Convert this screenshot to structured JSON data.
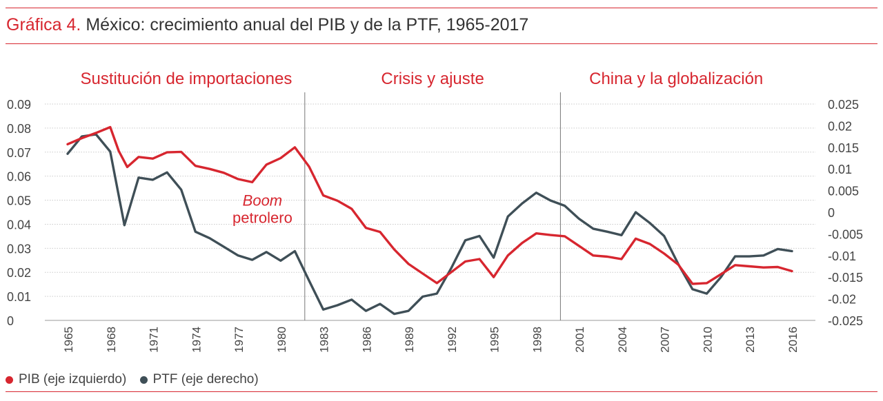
{
  "title": {
    "label": "Gráfica 4.",
    "text": "México: crecimiento anual del PIB y de la PTF, 1965-2017"
  },
  "colors": {
    "accent": "#d7262f",
    "pib": "#d7262f",
    "ptf": "#3f4f57",
    "grid": "#c9c9c9",
    "divider": "#777777"
  },
  "legend": [
    {
      "label": "PIB (eje izquierdo)",
      "color": "#d7262f"
    },
    {
      "label": "PTF (eje derecho)",
      "color": "#3f4f57"
    }
  ],
  "chart_data": {
    "type": "line",
    "grid": true,
    "legend_position": "bottom-left",
    "x_range": [
      1965,
      2016
    ],
    "x_ticks": [
      1965,
      1968,
      1971,
      1974,
      1977,
      1980,
      1983,
      1986,
      1989,
      1992,
      1995,
      1998,
      2001,
      2004,
      2007,
      2010,
      2013,
      2016
    ],
    "y_left": {
      "min": 0,
      "max": 0.09,
      "ticks": [
        "0",
        "0.01",
        "0.02",
        "0.03",
        "0.04",
        "0.05",
        "0.06",
        "0.07",
        "0.08",
        "0.09"
      ]
    },
    "y_right": {
      "min": -0.025,
      "max": 0.025,
      "ticks": [
        "-0.025",
        "-0.02",
        "-0.015",
        "-0.01",
        "-0.005",
        "0",
        "0.005",
        "0.01",
        "0.015",
        "0.02",
        "0.025"
      ]
    },
    "periods": [
      {
        "label": "Sustitución de importaciones",
        "start": 1965,
        "end": 1981.7
      },
      {
        "label": "Crisis y ajuste",
        "start": 1981.7,
        "end": 1999.7
      },
      {
        "label": "China y la globalización",
        "start": 1999.7,
        "end": 2016
      }
    ],
    "dividers": [
      1981.7,
      1999.7
    ],
    "annotation": {
      "line1": "Boom",
      "line2": "petrolero",
      "x": 1981,
      "y": 0.042
    },
    "series": [
      {
        "name": "PIB (eje izquierdo)",
        "axis": "left",
        "x": [
          1965,
          1966,
          1967,
          1968,
          1968.6,
          1969.2,
          1970,
          1971,
          1972,
          1973,
          1974,
          1975,
          1976,
          1977,
          1978,
          1979,
          1980,
          1981,
          1982,
          1983,
          1984,
          1985,
          1986,
          1987,
          1988,
          1989,
          1990,
          1991,
          1992,
          1993,
          1994,
          1995,
          1996,
          1997,
          1998,
          1999,
          2000,
          2001,
          2002,
          2003,
          2004,
          2005,
          2006,
          2007,
          2008,
          2009,
          2010,
          2011,
          2012,
          2013,
          2014,
          2015,
          2016
        ],
        "values": [
          0.0733,
          0.0758,
          0.078,
          0.0804,
          0.0705,
          0.0638,
          0.068,
          0.0673,
          0.0699,
          0.0701,
          0.0643,
          0.063,
          0.0614,
          0.0588,
          0.0575,
          0.0648,
          0.0675,
          0.072,
          0.064,
          0.052,
          0.0498,
          0.0464,
          0.0385,
          0.0368,
          0.0295,
          0.0235,
          0.0195,
          0.0155,
          0.02,
          0.0245,
          0.0255,
          0.018,
          0.027,
          0.0322,
          0.0362,
          0.0355,
          0.035,
          0.031,
          0.027,
          0.0265,
          0.0255,
          0.034,
          0.0318,
          0.0278,
          0.0232,
          0.0152,
          0.0155,
          0.0192,
          0.023,
          0.0225,
          0.022,
          0.0222,
          0.0205
        ]
      },
      {
        "name": "PTF (eje derecho)",
        "axis": "right",
        "x": [
          1965,
          1966,
          1967,
          1968,
          1969,
          1970,
          1971,
          1972,
          1973,
          1974,
          1975,
          1976,
          1977,
          1978,
          1979,
          1980,
          1981,
          1982,
          1983,
          1984,
          1985,
          1986,
          1987,
          1988,
          1989,
          1990,
          1991,
          1992,
          1993,
          1994,
          1995,
          1996,
          1997,
          1998,
          1999,
          2000,
          2001,
          2002,
          2003,
          2004,
          2005,
          2006,
          2007,
          2008,
          2009,
          2010,
          2011,
          2012,
          2013,
          2014,
          2015,
          2016
        ],
        "values": [
          0.0135,
          0.0175,
          0.018,
          0.014,
          -0.003,
          0.008,
          0.0075,
          0.0092,
          0.0052,
          -0.0045,
          -0.006,
          -0.008,
          -0.01,
          -0.011,
          -0.0092,
          -0.0112,
          -0.009,
          -0.0158,
          -0.0225,
          -0.0215,
          -0.0202,
          -0.0228,
          -0.0212,
          -0.0235,
          -0.0228,
          -0.0195,
          -0.0188,
          -0.013,
          -0.0065,
          -0.0055,
          -0.0105,
          -0.001,
          0.002,
          0.0045,
          0.0027,
          0.0015,
          -0.0015,
          -0.0038,
          -0.0045,
          -0.0053,
          0.0,
          -0.0025,
          -0.0055,
          -0.012,
          -0.0178,
          -0.0188,
          -0.015,
          -0.0102,
          -0.0102,
          -0.01,
          -0.0085,
          -0.009
        ]
      }
    ]
  }
}
